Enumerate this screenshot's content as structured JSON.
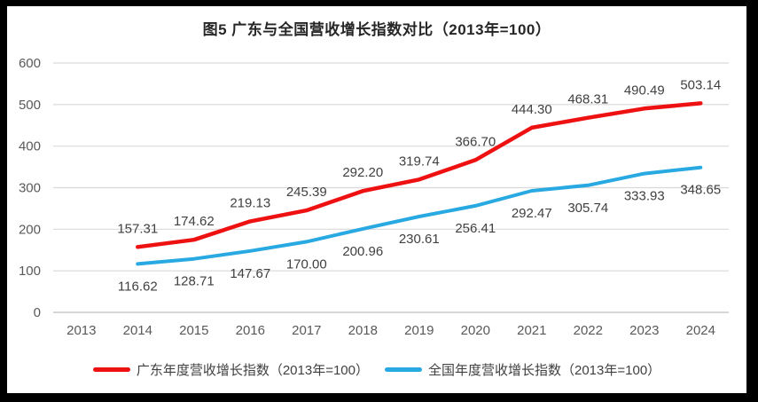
{
  "chart_data": {
    "type": "line",
    "title": "图5  广东与全国营收增长指数对比（2013年=100）",
    "x_categories": [
      "2013",
      "2014",
      "2015",
      "2016",
      "2017",
      "2018",
      "2019",
      "2020",
      "2021",
      "2022",
      "2023",
      "2024"
    ],
    "y_ticks": [
      0,
      100,
      200,
      300,
      400,
      500,
      600
    ],
    "ylim": [
      0,
      600
    ],
    "grid": true,
    "legend_position": "bottom",
    "series": [
      {
        "name": "广东年度营收增长指数（2013年=100）",
        "color": "#ee1111",
        "stroke_width": 4.5,
        "start_index": 1,
        "label_position": "above",
        "values": [
          157.31,
          174.62,
          219.13,
          245.39,
          292.2,
          319.74,
          366.7,
          444.3,
          468.31,
          490.49,
          503.14
        ]
      },
      {
        "name": "全国年度营收增长指数（2013年=100）",
        "color": "#29a9e1",
        "stroke_width": 4,
        "start_index": 1,
        "label_position": "below",
        "values": [
          116.62,
          128.71,
          147.67,
          170.0,
          200.96,
          230.61,
          256.41,
          292.47,
          305.74,
          333.93,
          348.65
        ]
      }
    ],
    "colors": {
      "gridline": "#d9d9d9",
      "axis_line": "#bfbfbf",
      "tick_text": "#595959",
      "data_label_text": "#404040",
      "background": "#ffffff",
      "frame": "#000000"
    }
  }
}
